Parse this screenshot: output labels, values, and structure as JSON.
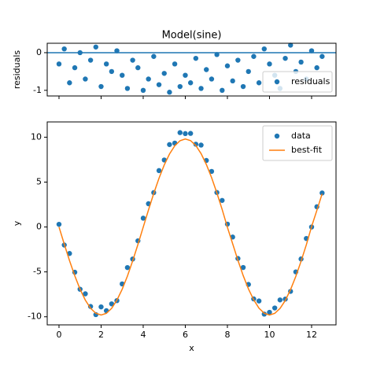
{
  "chart_data": [
    {
      "type": "scatter",
      "title": "Model(sine)",
      "ylabel": "residuals",
      "x": [
        0,
        0.25,
        0.5,
        0.75,
        1,
        1.25,
        1.5,
        1.75,
        2,
        2.25,
        2.5,
        2.75,
        3,
        3.25,
        3.5,
        3.75,
        4,
        4.25,
        4.5,
        4.75,
        5,
        5.25,
        5.5,
        5.75,
        6,
        6.25,
        6.5,
        6.75,
        7,
        7.25,
        7.5,
        7.75,
        8,
        8.25,
        8.5,
        8.75,
        9,
        9.25,
        9.5,
        9.75,
        10,
        10.25,
        10.5,
        10.75,
        11,
        11.25,
        11.5,
        11.75,
        12,
        12.25,
        12.5
      ],
      "series": [
        {
          "name": "residuals",
          "color": "#1f77b4",
          "mode": "markers",
          "values": [
            -0.3,
            0.1,
            -0.8,
            -0.4,
            0,
            -0.7,
            -0.2,
            0.15,
            -0.9,
            -0.3,
            -0.5,
            0.05,
            -0.6,
            -0.95,
            -0.2,
            -0.4,
            -1.0,
            -0.7,
            -0.1,
            -0.85,
            -0.55,
            -1.05,
            -0.3,
            -0.9,
            -0.6,
            -0.8,
            -0.15,
            -0.95,
            -0.45,
            -0.7,
            -0.05,
            -1.0,
            -0.35,
            -0.75,
            -0.2,
            -0.9,
            -0.5,
            -0.1,
            -0.8,
            0.1,
            -0.3,
            -0.6,
            -0.95,
            -0.15,
            0.2,
            -0.5,
            -0.25,
            -0.7,
            0.05,
            -0.4,
            -0.1
          ]
        }
      ],
      "hline": 0,
      "hline_color": "#1f77b4",
      "xlim": [
        -0.56,
        13.16
      ],
      "ylim": [
        -1.15,
        0.25
      ],
      "xticks": [
        0,
        2,
        4,
        6,
        8,
        10,
        12
      ],
      "xtick_labels": false,
      "yticks": [
        -1,
        0
      ],
      "legend": "lower right"
    },
    {
      "type": "scatter",
      "xlabel": "x",
      "ylabel": "y",
      "x": [
        0,
        0.25,
        0.5,
        0.75,
        1,
        1.25,
        1.5,
        1.75,
        2,
        2.25,
        2.5,
        2.75,
        3,
        3.25,
        3.5,
        3.75,
        4,
        4.25,
        4.5,
        4.75,
        5,
        5.25,
        5.5,
        5.75,
        6,
        6.25,
        6.5,
        6.75,
        7,
        7.25,
        7.5,
        7.75,
        8,
        8.25,
        8.5,
        8.75,
        9,
        9.25,
        9.5,
        9.75,
        10,
        10.25,
        10.5,
        10.75,
        11,
        11.25,
        11.5,
        11.75,
        12,
        12.25,
        12.5
      ],
      "series": [
        {
          "name": "data",
          "color": "#1f77b4",
          "mode": "markers",
          "values": [
            0.3,
            -2.01,
            -2.95,
            -5.04,
            -6.93,
            -7.44,
            -8.85,
            -9.76,
            -8.9,
            -9.32,
            -8.56,
            -8.2,
            -6.34,
            -4.52,
            -3.57,
            -1.54,
            0.98,
            2.59,
            3.83,
            6.28,
            7.46,
            9.18,
            9.34,
            10.51,
            10.4,
            10.42,
            9.22,
            9.12,
            7.41,
            6.19,
            3.84,
            2.96,
            0.32,
            -1.12,
            -3.51,
            -4.51,
            -6.4,
            -8.01,
            -8.24,
            -9.7,
            -9.5,
            -9.02,
            -8.12,
            -8.03,
            -7.17,
            -5.0,
            -3.56,
            -1.28,
            0.0,
            2.25,
            3.79
          ]
        },
        {
          "name": "best-fit",
          "color": "#ff7f0e",
          "mode": "line",
          "values": [
            0,
            -1.91,
            -3.75,
            -5.44,
            -6.93,
            -8.14,
            -9.05,
            -9.61,
            -9.8,
            -9.62,
            -9.06,
            -8.15,
            -6.94,
            -5.47,
            -3.77,
            -1.94,
            -0.02,
            1.89,
            3.73,
            5.43,
            6.91,
            8.13,
            9.04,
            9.61,
            9.8,
            9.62,
            9.07,
            8.17,
            6.96,
            5.49,
            3.79,
            1.96,
            -0.03,
            -1.87,
            -3.71,
            -5.41,
            -6.9,
            -8.11,
            -9.04,
            -9.6,
            -9.8,
            -9.62,
            -9.07,
            -8.18,
            -6.97,
            -5.5,
            -3.81,
            -1.98,
            0.05,
            1.85,
            3.69
          ]
        }
      ],
      "xlim": [
        -0.56,
        13.16
      ],
      "ylim": [
        -10.9,
        11.7
      ],
      "xticks": [
        0,
        2,
        4,
        6,
        8,
        10,
        12
      ],
      "yticks": [
        -10,
        -5,
        0,
        5,
        10
      ],
      "legend": "upper right"
    }
  ]
}
